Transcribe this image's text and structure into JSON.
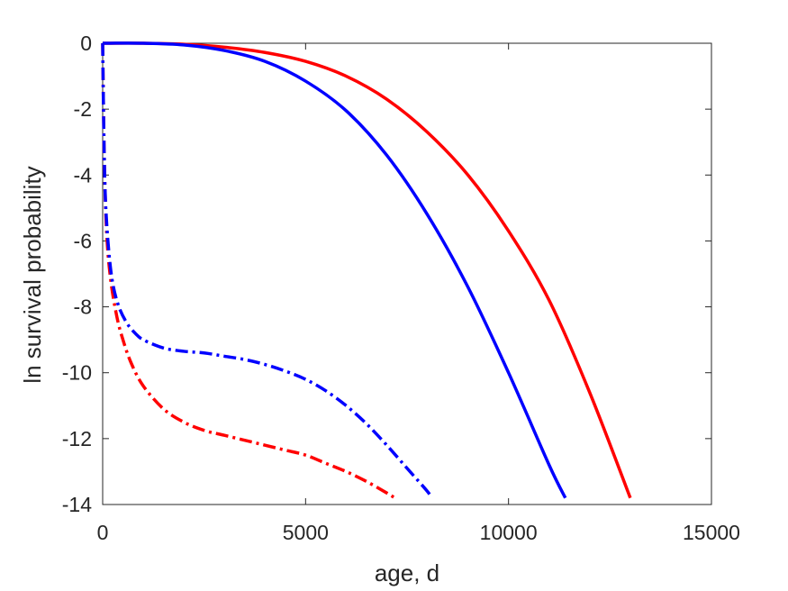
{
  "chart_data": {
    "type": "line",
    "xlabel": "age, d",
    "ylabel": "ln survival probability",
    "xlim": [
      0,
      15000
    ],
    "ylim": [
      -14,
      0
    ],
    "xticks": [
      0,
      5000,
      10000,
      15000
    ],
    "yticks": [
      0,
      -2,
      -4,
      -6,
      -8,
      -10,
      -12,
      -14
    ],
    "grid": false,
    "legend": "none",
    "series": [
      {
        "color": "#ff0000",
        "style": "solid",
        "x": [
          0,
          1000,
          2000,
          3000,
          4000,
          5000,
          6000,
          7000,
          8000,
          9000,
          10000,
          11000,
          12000,
          13000
        ],
        "y": [
          0,
          0,
          -0.03,
          -0.12,
          -0.28,
          -0.55,
          -1.0,
          -1.7,
          -2.7,
          -4.0,
          -5.7,
          -7.8,
          -10.6,
          -13.8
        ]
      },
      {
        "color": "#0000ff",
        "style": "solid",
        "x": [
          0,
          1000,
          2000,
          3000,
          4000,
          5000,
          6000,
          7000,
          8000,
          9000,
          10000,
          11000,
          11400
        ],
        "y": [
          0,
          0,
          -0.05,
          -0.22,
          -0.55,
          -1.15,
          -2.05,
          -3.4,
          -5.2,
          -7.4,
          -10.0,
          -12.8,
          -13.8
        ]
      },
      {
        "color": "#ff0000",
        "style": "dashdot",
        "x": [
          0,
          40,
          100,
          200,
          350,
          500,
          700,
          1000,
          1500,
          2000,
          2500,
          3000,
          3500,
          4000,
          4500,
          5000,
          5500,
          6000,
          6500,
          7000,
          7200
        ],
        "y": [
          0,
          -3.5,
          -5.8,
          -7.2,
          -8.3,
          -9.0,
          -9.7,
          -10.4,
          -11.1,
          -11.5,
          -11.75,
          -11.9,
          -12.05,
          -12.2,
          -12.35,
          -12.5,
          -12.75,
          -13.0,
          -13.3,
          -13.65,
          -13.8
        ]
      },
      {
        "color": "#0000ff",
        "style": "dashdot",
        "x": [
          0,
          30,
          70,
          150,
          250,
          400,
          600,
          800,
          1000,
          1500,
          2000,
          2500,
          3000,
          3500,
          4000,
          4500,
          5000,
          5500,
          6000,
          6500,
          7000,
          7500,
          8000,
          8100
        ],
        "y": [
          0,
          -2.8,
          -4.8,
          -6.3,
          -7.3,
          -8.0,
          -8.5,
          -8.8,
          -9.0,
          -9.25,
          -9.35,
          -9.4,
          -9.5,
          -9.6,
          -9.75,
          -9.95,
          -10.2,
          -10.55,
          -11.0,
          -11.55,
          -12.2,
          -12.9,
          -13.6,
          -13.8
        ]
      }
    ]
  }
}
